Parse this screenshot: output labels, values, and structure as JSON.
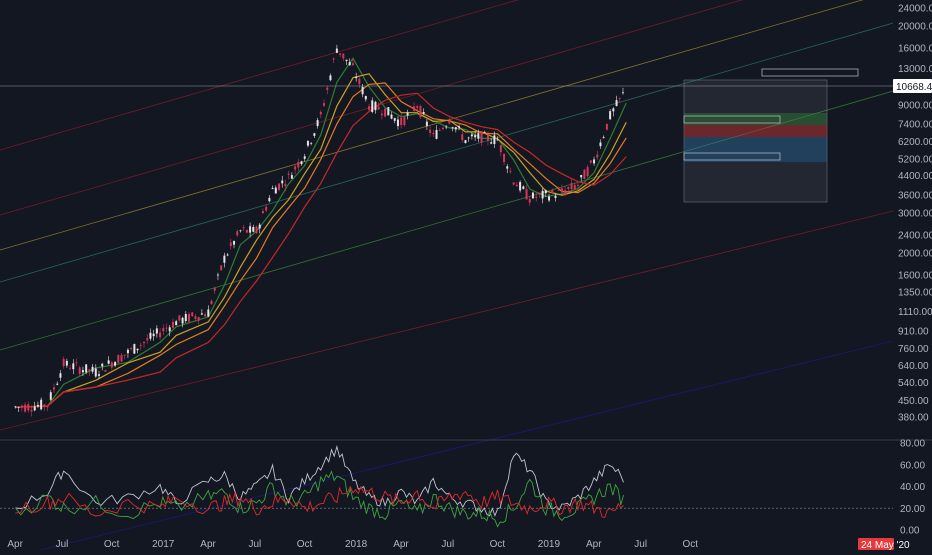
{
  "colors": {
    "background": "#131722",
    "axis_text": "#b2b5be",
    "separator": "#3a3e4a",
    "candle_up": "#e8e2e6",
    "candle_down": "#d6365a",
    "ma_green": "#2e7d32",
    "ma_yellow": "#c9a227",
    "ma_orange": "#e07b27",
    "ma_red": "#c62828",
    "channel_red": "#8b1c2c",
    "channel_yellow": "#a08a2a",
    "channel_teal": "#2a7a6a",
    "channel_green": "#3a8a3a",
    "channel_blue": "#1a1a8a",
    "osc_white": "#bfc3cc",
    "osc_green": "#3fa33f",
    "osc_red": "#e02a2a",
    "last_price_bg": "#ffffff",
    "date_tag_bg": "#e5393b"
  },
  "price_axis": {
    "ticks": [
      "24000.00",
      "20000.00",
      "16000.00",
      "13000.00",
      "9000.00",
      "7400.00",
      "6200.00",
      "5200.00",
      "4400.00",
      "3600.00",
      "3000.00",
      "2400.00",
      "2000.00",
      "1600.00",
      "1350.00",
      "1110.00",
      "910.00",
      "760.00",
      "640.00",
      "540.00",
      "450.00",
      "380.00"
    ],
    "last_price": "10668.43",
    "scale": "log"
  },
  "oscillator_axis": {
    "ticks": [
      "80.00",
      "60.00",
      "40.00",
      "20.00",
      "0.00"
    ]
  },
  "time_axis": {
    "ticks": [
      "Apr",
      "Jul",
      "Oct",
      "2017",
      "Apr",
      "Jul",
      "Oct",
      "2018",
      "Apr",
      "Jul",
      "Oct",
      "2019",
      "Apr",
      "Jul",
      "Oct"
    ],
    "current_date": "24 May '20"
  },
  "chart_data": {
    "type": "line",
    "title": "",
    "xlabel": "",
    "ylabel": "",
    "y_scale": "log",
    "ylim": [
      340,
      25000
    ],
    "x": [
      "2016-04",
      "2016-06",
      "2016-07",
      "2016-09",
      "2016-11",
      "2017-01",
      "2017-02",
      "2017-04",
      "2017-05",
      "2017-06",
      "2017-07",
      "2017-08",
      "2017-09",
      "2017-10",
      "2017-11",
      "2017-12",
      "2018-01",
      "2018-02",
      "2018-03",
      "2018-04",
      "2018-05",
      "2018-06",
      "2018-07",
      "2018-08",
      "2018-09",
      "2018-10",
      "2018-11",
      "2018-12",
      "2019-01",
      "2019-02",
      "2019-03",
      "2019-04",
      "2019-05",
      "2019-06"
    ],
    "series": [
      {
        "values": [
          420,
          430,
          650,
          600,
          730,
          900,
          1000,
          1100,
          1900,
          2500,
          2500,
          3800,
          4300,
          5500,
          8000,
          16000,
          13000,
          9000,
          8500,
          7500,
          9000,
          6500,
          7800,
          6300,
          6500,
          6300,
          4200,
          3500,
          3600,
          3700,
          4000,
          5100,
          8000,
          10500
        ]
      }
    ],
    "oscillator": {
      "ylim": [
        0,
        80
      ],
      "levels": [
        20
      ],
      "series": [
        {
          "values": [
            20,
            35,
            55,
            25,
            30,
            40,
            25,
            45,
            50,
            30,
            40,
            55,
            30,
            45,
            60,
            75,
            45,
            30,
            25,
            35,
            25,
            45,
            30,
            25,
            20,
            15,
            70,
            55,
            25,
            20,
            30,
            45,
            60,
            45
          ]
        },
        {
          "values": [
            15,
            30,
            20,
            25,
            15,
            25,
            20,
            30,
            35,
            20,
            25,
            40,
            25,
            30,
            45,
            50,
            30,
            20,
            15,
            25,
            15,
            30,
            20,
            15,
            15,
            10,
            20,
            45,
            20,
            15,
            20,
            30,
            40,
            25
          ]
        },
        {
          "values": [
            20,
            25,
            30,
            15,
            25,
            20,
            30,
            20,
            25,
            30,
            20,
            25,
            30,
            20,
            25,
            30,
            40,
            35,
            30,
            25,
            35,
            20,
            30,
            35,
            25,
            30,
            25,
            20,
            25,
            20,
            25,
            20,
            15,
            25
          ]
        }
      ]
    }
  }
}
